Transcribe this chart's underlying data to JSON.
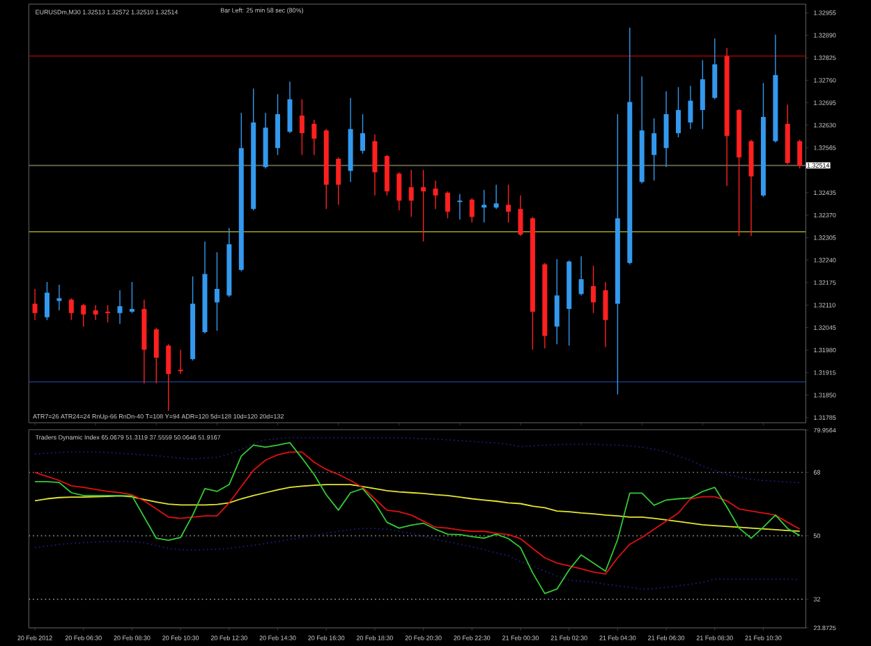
{
  "chart_data": [
    {
      "type": "candlestick",
      "title": "EURUSDm,M30  1.32513 1.32572 1.32510 1.32514",
      "annotations": [
        "Bar Left: 25 min 58 sec (80%)",
        "ATR7=26 ATR24=24      RnUp-66  RnDn-40  T=108  Y=94  ADR=120  5d=128  10d=120  20d=132"
      ],
      "categories": [
        null,
        null,
        null,
        null,
        null,
        null,
        null,
        null,
        null,
        null,
        null,
        null,
        null,
        null,
        null,
        null,
        null,
        null,
        null,
        null,
        null,
        null,
        null,
        null,
        null,
        null,
        null,
        null,
        null,
        null,
        null,
        null,
        null,
        null,
        null,
        null,
        null,
        null,
        null,
        null,
        null,
        null,
        null,
        null,
        null,
        null,
        null,
        null,
        null,
        null,
        null,
        null,
        null,
        null,
        null,
        null,
        null,
        null,
        null,
        null,
        null,
        null,
        null,
        null
      ],
      "ohlc": [
        [
          1.32114,
          1.32157,
          1.32067,
          1.32087
        ],
        [
          1.32075,
          1.32177,
          1.32067,
          1.32146
        ],
        [
          1.32122,
          1.32169,
          1.32095,
          1.3213
        ],
        [
          1.32126,
          1.3213,
          1.32067,
          1.32087
        ],
        [
          1.3211,
          1.32114,
          1.32048,
          1.32083
        ],
        [
          1.32095,
          1.3211,
          1.32067,
          1.32083
        ],
        [
          1.32091,
          1.3211,
          1.3206,
          1.32087
        ],
        [
          1.32087,
          1.32153,
          1.32056,
          1.32107
        ],
        [
          1.32091,
          1.32177,
          1.32087,
          1.32099
        ],
        [
          1.32099,
          1.32126,
          1.31884,
          1.31981
        ],
        [
          1.3204,
          1.32044,
          1.31884,
          1.31958
        ],
        [
          1.31993,
          1.31997,
          1.31805,
          1.31911
        ],
        [
          1.31923,
          1.31981,
          1.31911,
          1.31919
        ],
        [
          1.31954,
          1.32193,
          1.3195,
          1.32114
        ],
        [
          1.32032,
          1.32294,
          1.32028,
          1.322
        ],
        [
          1.32118,
          1.32263,
          1.32036,
          1.32157
        ],
        [
          1.32138,
          1.32333,
          1.32134,
          1.32286
        ],
        [
          1.32212,
          1.32666,
          1.32208,
          1.32564
        ],
        [
          1.32388,
          1.32736,
          1.32384,
          1.32638
        ],
        [
          1.32509,
          1.32666,
          1.32505,
          1.32623
        ],
        [
          1.32564,
          1.3272,
          1.32544,
          1.32662
        ],
        [
          1.32611,
          1.32756,
          1.32607,
          1.32705
        ],
        [
          1.32658,
          1.32705,
          1.32544,
          1.32607
        ],
        [
          1.32634,
          1.32646,
          1.32544,
          1.32591
        ],
        [
          1.32615,
          1.32619,
          1.32388,
          1.32458
        ],
        [
          1.32533,
          1.32537,
          1.324,
          1.32458
        ],
        [
          1.32498,
          1.32709,
          1.32466,
          1.32619
        ],
        [
          1.32556,
          1.32662,
          1.32548,
          1.32607
        ],
        [
          1.32584,
          1.32603,
          1.32427,
          1.32494
        ],
        [
          1.32541,
          1.32544,
          1.32427,
          1.32439
        ],
        [
          1.3249,
          1.32494,
          1.32384,
          1.32412
        ],
        [
          1.32451,
          1.32501,
          1.32365,
          1.32412
        ],
        [
          1.32451,
          1.32501,
          1.32294,
          1.32439
        ],
        [
          1.32447,
          1.3247,
          1.32388,
          1.32427
        ],
        [
          1.32435,
          1.32439,
          1.32361,
          1.3238
        ],
        [
          1.32408,
          1.32431,
          1.32357,
          1.32412
        ],
        [
          1.32415,
          1.32419,
          1.32349,
          1.32365
        ],
        [
          1.32392,
          1.32443,
          1.32349,
          1.324
        ],
        [
          1.32392,
          1.32458,
          1.32388,
          1.32404
        ],
        [
          1.324,
          1.32458,
          1.32349,
          1.3238
        ],
        [
          1.32388,
          1.32427,
          1.3231,
          1.32314
        ],
        [
          1.32361,
          1.32365,
          1.31981,
          1.32091
        ],
        [
          1.32228,
          1.32232,
          1.31985,
          1.32021
        ],
        [
          1.32048,
          1.32243,
          1.31997,
          1.32138
        ],
        [
          1.32099,
          1.32239,
          1.31993,
          1.32236
        ],
        [
          1.32142,
          1.32251,
          1.32138,
          1.32185
        ],
        [
          1.32165,
          1.32224,
          1.32087,
          1.32118
        ],
        [
          1.32153,
          1.32177,
          1.31989,
          1.32067
        ],
        [
          1.32114,
          1.32662,
          1.31852,
          1.32361
        ],
        [
          1.32232,
          1.32912,
          1.32228,
          1.32697
        ],
        [
          1.32466,
          1.32771,
          1.32462,
          1.32615
        ],
        [
          1.32544,
          1.3265,
          1.3247,
          1.32607
        ],
        [
          1.32564,
          1.32728,
          1.32509,
          1.32662
        ],
        [
          1.32607,
          1.3274,
          1.32595,
          1.32674
        ],
        [
          1.32638,
          1.32744,
          1.32619,
          1.32701
        ],
        [
          1.32674,
          1.32818,
          1.32619,
          1.32763
        ],
        [
          1.32709,
          1.32881,
          1.32705,
          1.32806
        ],
        [
          1.3283,
          1.32853,
          1.32455,
          1.32599
        ],
        [
          1.32674,
          1.32677,
          1.3231,
          1.32537
        ],
        [
          1.32584,
          1.32588,
          1.3231,
          1.32482
        ],
        [
          1.32427,
          1.32752,
          1.32423,
          1.32654
        ],
        [
          1.32584,
          1.32892,
          1.3258,
          1.32775
        ],
        [
          1.32634,
          1.32689,
          1.32517,
          1.32521
        ],
        [
          1.32584,
          1.32588,
          1.32505,
          1.32514
        ]
      ],
      "colors": [
        "#ff2020",
        "#3399ee",
        "#3399ee",
        "#ff2020",
        "#ff2020",
        "#ff2020",
        "#ff2020",
        "#3399ee",
        "#3399ee",
        "#ff2020",
        "#ff2020",
        "#ff2020",
        "#ff2020",
        "#3399ee",
        "#3399ee",
        "#3399ee",
        "#3399ee",
        "#3399ee",
        "#3399ee",
        "#3399ee",
        "#3399ee",
        "#3399ee",
        "#ff2020",
        "#ff2020",
        "#ff2020",
        "#ff2020",
        "#3399ee",
        "#3399ee",
        "#ff2020",
        "#ff2020",
        "#ff2020",
        "#ff2020",
        "#ff2020",
        "#ff2020",
        "#ff2020",
        "#3399ee",
        "#ff2020",
        "#3399ee",
        "#3399ee",
        "#ff2020",
        "#ff2020",
        "#ff2020",
        "#ff2020",
        "#3399ee",
        "#3399ee",
        "#3399ee",
        "#ff2020",
        "#ff2020",
        "#3399ee",
        "#3399ee",
        "#3399ee",
        "#3399ee",
        "#3399ee",
        "#3399ee",
        "#3399ee",
        "#3399ee",
        "#3399ee",
        "#ff2020",
        "#ff2020",
        "#ff2020",
        "#3399ee",
        "#3399ee",
        "#ff2020",
        "#ff2020"
      ],
      "ylim": [
        1.3177,
        1.3298
      ],
      "yticks": [
        1.32955,
        {
          "value": 1.3289,
          "label": "1.32890"
        },
        1.32825,
        {
          "value": 1.3276,
          "label": "1.32760"
        },
        1.32695,
        {
          "value": 1.3263,
          "label": "1.32630"
        },
        1.32565,
        1.32435,
        {
          "value": 1.3237,
          "label": "1.32370"
        },
        1.32305,
        {
          "value": 1.3224,
          "label": "1.32240"
        },
        1.32175,
        {
          "value": 1.3211,
          "label": "1.32110"
        },
        1.32045,
        {
          "value": 1.3198,
          "label": "1.31980"
        },
        1.31915,
        {
          "value": 1.3185,
          "label": "1.31850"
        },
        1.31785
      ],
      "ref_lines": [
        {
          "axis": "y",
          "value": 1.3283,
          "color": "#800000"
        },
        {
          "axis": "y",
          "value": 1.32514,
          "color": "#6b6b55",
          "label": "1.32514"
        },
        {
          "axis": "y",
          "value": 1.32322,
          "color": "#8c8c1e"
        },
        {
          "axis": "y",
          "value": 1.31888,
          "color": "#1e3c8c"
        }
      ]
    },
    {
      "type": "line",
      "title": "Traders Dynamic Index 65.0679 51.3119 37.5559 50.0646 51.9167",
      "categories": [
        "20 Feb 2012",
        null,
        null,
        null,
        "20 Feb 06:30",
        null,
        null,
        null,
        "20 Feb 08:30",
        null,
        null,
        null,
        "20 Feb 10:30",
        null,
        null,
        null,
        "20 Feb 12:30",
        null,
        null,
        null,
        "20 Feb 14:30",
        null,
        null,
        null,
        "20 Feb 16:30",
        null,
        null,
        null,
        "20 Feb 18:30",
        null,
        null,
        null,
        "20 Feb 20:30",
        null,
        null,
        null,
        "20 Feb 22:30",
        null,
        null,
        null,
        "21 Feb 00:30",
        null,
        null,
        null,
        "21 Feb 02:30",
        null,
        null,
        null,
        "21 Feb 04:30",
        null,
        null,
        null,
        "21 Feb 06:30",
        null,
        null,
        null,
        "21 Feb 08:30",
        null,
        null,
        null,
        "21 Feb 10:30",
        null,
        null,
        null
      ],
      "series": [
        {
          "color": "#1c1c80",
          "line_style": "dotted",
          "values": [
            73.19,
            73.42,
            73.65,
            73.77,
            73.77,
            73.77,
            73.65,
            73.42,
            73.19,
            72.96,
            72.73,
            72.38,
            72.04,
            71.81,
            72.04,
            72.27,
            73.19,
            74.58,
            76.08,
            77.23,
            77.58,
            77.81,
            77.81,
            77.81,
            77.81,
            77.81,
            77.81,
            77.81,
            77.81,
            77.81,
            77.81,
            77.69,
            77.58,
            77.46,
            77.23,
            77.0,
            76.77,
            76.54,
            76.31,
            75.96,
            75.27,
            75.5,
            75.73,
            75.85,
            75.96,
            75.96,
            75.96,
            75.85,
            75.73,
            75.5,
            75.15,
            74.58,
            73.77,
            72.61,
            71.46,
            69.73,
            68.58,
            67.42,
            66.61,
            66.04,
            65.69,
            65.46,
            65.23,
            65.07
          ]
        },
        {
          "color": "#1c1c80",
          "line_style": "dotted",
          "values": [
            46.65,
            47.12,
            47.58,
            47.81,
            48.04,
            48.27,
            48.38,
            48.38,
            48.38,
            48.04,
            47.23,
            46.42,
            46.08,
            45.96,
            46.08,
            46.19,
            46.42,
            46.88,
            47.35,
            47.81,
            48.38,
            48.96,
            49.54,
            50.12,
            50.69,
            51.27,
            51.73,
            52.08,
            52.08,
            51.85,
            51.27,
            50.69,
            49.88,
            48.96,
            48.27,
            47.58,
            46.88,
            46.08,
            45.15,
            44.35,
            42.62,
            41.46,
            39.96,
            38.58,
            37.42,
            37.08,
            36.85,
            36.27,
            35.81,
            35.35,
            34.88,
            35.0,
            35.35,
            35.81,
            36.27,
            36.85,
            37.65,
            37.65,
            37.65,
            37.65,
            37.65,
            37.65,
            37.65,
            37.56
          ]
        },
        {
          "color": "#e6e633",
          "values": [
            59.92,
            60.5,
            60.85,
            60.96,
            60.96,
            61.08,
            61.19,
            61.31,
            61.08,
            60.27,
            59.58,
            59.0,
            58.77,
            58.77,
            58.77,
            58.88,
            59.35,
            60.5,
            61.42,
            62.23,
            63.04,
            63.73,
            64.08,
            64.31,
            64.54,
            64.54,
            64.54,
            63.96,
            63.38,
            62.81,
            62.46,
            62.23,
            62.0,
            61.65,
            61.42,
            60.96,
            60.5,
            60.15,
            59.81,
            59.35,
            59.12,
            58.42,
            57.96,
            57.04,
            56.81,
            56.46,
            56.23,
            55.88,
            55.65,
            55.31,
            55.31,
            54.96,
            54.5,
            54.04,
            53.58,
            53.12,
            52.88,
            52.65,
            52.42,
            52.19,
            51.96,
            51.73,
            51.5,
            51.31
          ]
        },
        {
          "color": "#e01010",
          "values": [
            68.0,
            66.85,
            65.69,
            64.19,
            63.73,
            63.15,
            62.58,
            62.23,
            61.65,
            59.92,
            57.62,
            55.31,
            54.96,
            55.31,
            55.65,
            55.65,
            59.35,
            63.96,
            68.58,
            71.46,
            72.96,
            73.77,
            73.77,
            70.88,
            68.81,
            67.42,
            65.69,
            63.73,
            60.5,
            57.27,
            56.81,
            55.88,
            54.15,
            52.42,
            52.19,
            51.62,
            51.27,
            51.27,
            50.69,
            50.35,
            49.19,
            46.42,
            43.77,
            42.27,
            41.46,
            40.65,
            39.73,
            39.15,
            43.77,
            47.58,
            49.54,
            51.85,
            54.15,
            56.46,
            60.5,
            61.08,
            61.08,
            59.92,
            57.62,
            57.04,
            56.46,
            55.88,
            53.81,
            51.92
          ]
        },
        {
          "color": "#33cc33",
          "values": [
            65.35,
            65.35,
            65.11,
            62.23,
            61.42,
            61.42,
            61.42,
            61.42,
            61.31,
            55.31,
            49.31,
            48.73,
            49.54,
            55.88,
            63.38,
            62.58,
            64.54,
            72.61,
            75.73,
            75.15,
            75.73,
            76.42,
            72.04,
            67.42,
            61.65,
            57.27,
            62.23,
            63.38,
            59.35,
            53.81,
            52.19,
            53.0,
            53.58,
            51.85,
            50.46,
            50.35,
            49.77,
            49.31,
            50.46,
            49.19,
            46.65,
            39.5,
            33.62,
            34.89,
            40.31,
            44.58,
            42.27,
            39.96,
            48.96,
            62.11,
            62.11,
            58.65,
            60.15,
            60.5,
            60.73,
            62.58,
            63.73,
            58.19,
            52.19,
            49.31,
            52.42,
            55.88,
            52.08,
            50.06
          ]
        }
      ],
      "ylim": [
        23.8725,
        80.1
      ],
      "yticks": [
        79.9564,
        68,
        50,
        32,
        23.8725
      ],
      "ref_lines": [
        {
          "axis": "y",
          "value": 68,
          "color": "#808080",
          "line_style": "dotted"
        },
        {
          "axis": "y",
          "value": 50,
          "color": "#808080",
          "line_style": "dotted"
        },
        {
          "axis": "y",
          "value": 32,
          "color": "#808080",
          "line_style": "dotted"
        }
      ]
    }
  ]
}
